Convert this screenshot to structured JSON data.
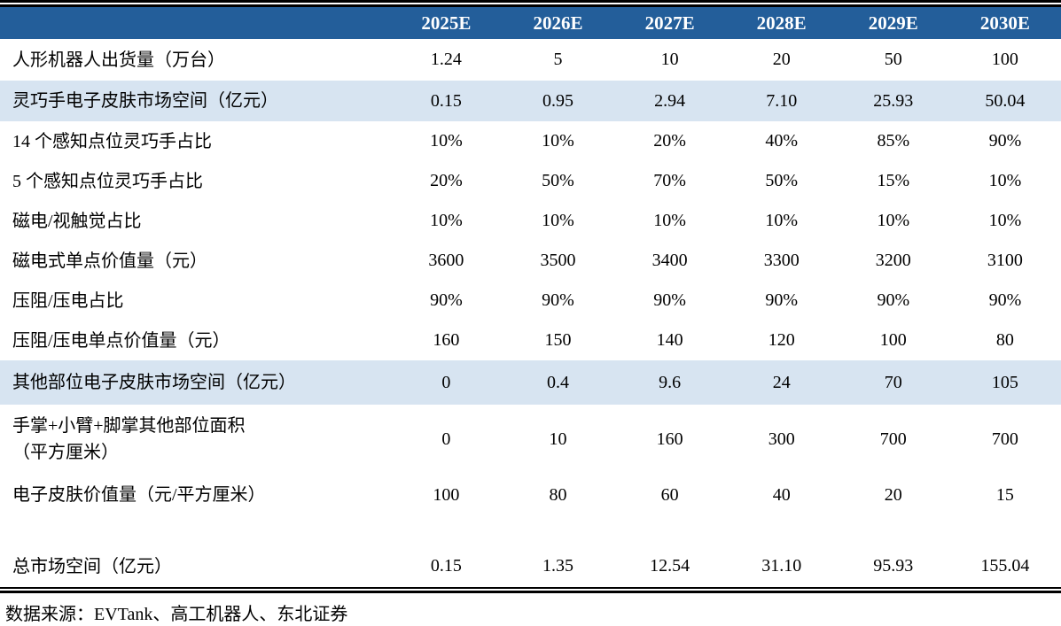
{
  "page": {
    "source_note": "数据来源：EVTank、高工机器人、东北证券"
  },
  "colors": {
    "header_bg": "#235E9A",
    "header_text": "#FFFFFF",
    "highlight_row_bg": "#D7E4F1",
    "body_text": "#000000",
    "rule": "#000000"
  },
  "table": {
    "columns": [
      "2025E",
      "2026E",
      "2027E",
      "2028E",
      "2029E",
      "2030E"
    ],
    "rows": [
      {
        "label": "人形机器人出货量（万台）",
        "values": [
          "1.24",
          "5",
          "10",
          "20",
          "50",
          "100"
        ],
        "highlight": false,
        "spacer": false
      },
      {
        "label": "灵巧手电子皮肤市场空间（亿元）",
        "values": [
          "0.15",
          "0.95",
          "2.94",
          "7.10",
          "25.93",
          "50.04"
        ],
        "highlight": true,
        "spacer": false
      },
      {
        "label": "14 个感知点位灵巧手占比",
        "values": [
          "10%",
          "10%",
          "20%",
          "40%",
          "85%",
          "90%"
        ],
        "highlight": false,
        "spacer": false
      },
      {
        "label": "5 个感知点位灵巧手占比",
        "values": [
          "20%",
          "50%",
          "70%",
          "50%",
          "15%",
          "10%"
        ],
        "highlight": false,
        "spacer": false
      },
      {
        "label": "磁电/视触觉占比",
        "values": [
          "10%",
          "10%",
          "10%",
          "10%",
          "10%",
          "10%"
        ],
        "highlight": false,
        "spacer": false
      },
      {
        "label": "磁电式单点价值量（元）",
        "values": [
          "3600",
          "3500",
          "3400",
          "3300",
          "3200",
          "3100"
        ],
        "highlight": false,
        "spacer": false
      },
      {
        "label": "压阻/压电占比",
        "values": [
          "90%",
          "90%",
          "90%",
          "90%",
          "90%",
          "90%"
        ],
        "highlight": false,
        "spacer": false
      },
      {
        "label": "压阻/压电单点价值量（元）",
        "values": [
          "160",
          "150",
          "140",
          "120",
          "100",
          "80"
        ],
        "highlight": false,
        "spacer": false
      },
      {
        "label": "其他部位电子皮肤市场空间（亿元）",
        "values": [
          "0",
          "0.4",
          "9.6",
          "24",
          "70",
          "105"
        ],
        "highlight": true,
        "spacer": false
      },
      {
        "label": "手掌+小臂+脚掌其他部位面积\n（平方厘米）",
        "values": [
          "0",
          "10",
          "160",
          "300",
          "700",
          "700"
        ],
        "highlight": false,
        "spacer": false
      },
      {
        "label": "电子皮肤价值量（元/平方厘米）",
        "values": [
          "100",
          "80",
          "60",
          "40",
          "20",
          "15"
        ],
        "highlight": false,
        "spacer": false
      },
      {
        "label": "",
        "values": [
          "",
          "",
          "",
          "",
          "",
          ""
        ],
        "highlight": false,
        "spacer": true
      },
      {
        "label": "总市场空间（亿元）",
        "values": [
          "0.15",
          "1.35",
          "12.54",
          "31.10",
          "95.93",
          "155.04"
        ],
        "highlight": false,
        "spacer": false
      }
    ]
  }
}
